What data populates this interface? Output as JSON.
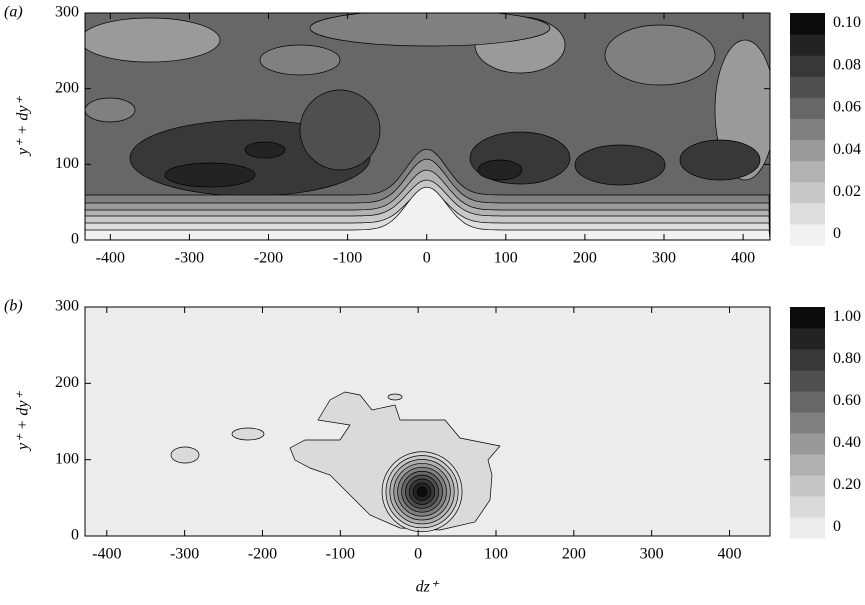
{
  "chart_data": [
    {
      "type": "contour",
      "panel_label": "(a)",
      "ylabel": "y⁺ + dy⁺",
      "xlim": [
        -432,
        434
      ],
      "xticks": [
        -400,
        -300,
        -200,
        -100,
        0,
        100,
        200,
        300,
        400
      ],
      "ylim": [
        0,
        300
      ],
      "yticks": [
        0,
        100,
        200,
        300
      ],
      "levels": [
        0,
        0.01,
        0.02,
        0.03,
        0.04,
        0.05,
        0.06,
        0.07,
        0.08,
        0.09,
        0.1
      ],
      "colors": [
        "#f1f1f1",
        "#dedede",
        "#c8c8c8",
        "#b2b2b2",
        "#9a9a9a",
        "#808080",
        "#676767",
        "#4f4f4f",
        "#383838",
        "#232323",
        "#0c0c0c"
      ],
      "colorbar_ticks": [
        0,
        0.02,
        0.04,
        0.06,
        0.08,
        {
          "value": 0.1,
          "label": "0.10"
        }
      ]
    },
    {
      "type": "contour",
      "panel_label": "(b)",
      "ylabel": "y⁺ + dy⁺",
      "xlabel": "dz⁺",
      "xlim": [
        -428,
        452
      ],
      "xticks": [
        -400,
        -300,
        -200,
        -100,
        0,
        100,
        200,
        300,
        400
      ],
      "ylim": [
        0,
        300
      ],
      "yticks": [
        0,
        100,
        200,
        300
      ],
      "levels": [
        0,
        0.1,
        0.2,
        0.3,
        0.4,
        0.5,
        0.6,
        0.7,
        0.8,
        0.9,
        1
      ],
      "colors": [
        "#ececec",
        "#dadada",
        "#c6c6c6",
        "#b0b0b0",
        "#999999",
        "#808080",
        "#676767",
        "#4f4f4f",
        "#383838",
        "#232323",
        "#0c0c0c"
      ],
      "colorbar_ticks": [
        0,
        {
          "value": 0.2,
          "label": "0.20"
        },
        {
          "value": 0.4,
          "label": "0.40"
        },
        {
          "value": 0.6,
          "label": "0.60"
        },
        {
          "value": 0.8,
          "label": "0.80"
        },
        {
          "value": 1,
          "label": "1.00"
        }
      ]
    }
  ]
}
